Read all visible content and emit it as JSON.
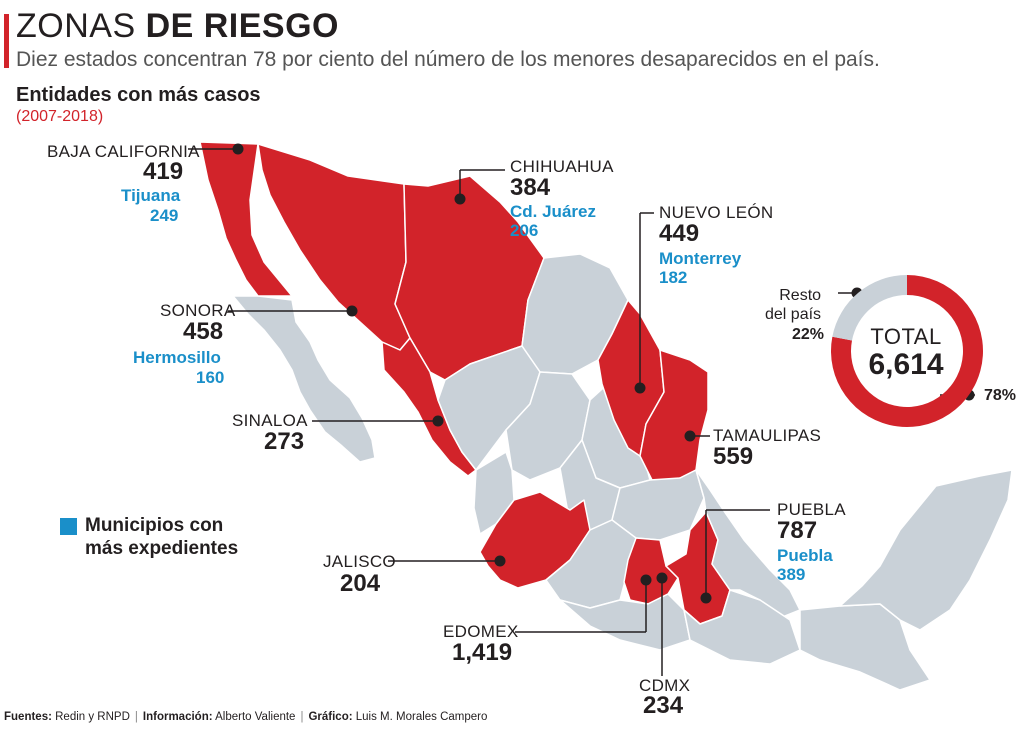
{
  "header": {
    "title_light": "ZONAS",
    "title_bold": "DE RIESGO",
    "subtitle": "Diez estados concentran 78 por ciento del número de los menores desaparecidos en el país.",
    "section_title": "Entidades con más casos",
    "years": "(2007-2018)"
  },
  "states": [
    {
      "id": "baja-california",
      "name": "BAJA CALIFORNIA",
      "value": "419",
      "municipality": "Tijuana",
      "municipality_value": "249"
    },
    {
      "id": "chihuahua",
      "name": "CHIHUAHUA",
      "value": "384",
      "municipality": "Cd. Juárez",
      "municipality_value": "206"
    },
    {
      "id": "nuevo-leon",
      "name": "NUEVO LEÓN",
      "value": "449",
      "municipality": "Monterrey",
      "municipality_value": "182"
    },
    {
      "id": "sonora",
      "name": "SONORA",
      "value": "458",
      "municipality": "Hermosillo",
      "municipality_value": "160"
    },
    {
      "id": "sinaloa",
      "name": "SINALOA",
      "value": "273"
    },
    {
      "id": "tamaulipas",
      "name": "TAMAULIPAS",
      "value": "559"
    },
    {
      "id": "puebla",
      "name": "PUEBLA",
      "value": "787",
      "municipality": "Puebla",
      "municipality_value": "389"
    },
    {
      "id": "jalisco",
      "name": "JALISCO",
      "value": "204"
    },
    {
      "id": "edomex",
      "name": "EDOMEX",
      "value": "1,419"
    },
    {
      "id": "cdmx",
      "name": "CDMX",
      "value": "234"
    }
  ],
  "legend": {
    "line1": "Municipios con",
    "line2": "más expedientes"
  },
  "donut": {
    "total_label": "TOTAL",
    "total_value": "6,614",
    "rest_label_1": "Resto",
    "rest_label_2": "del país",
    "rest_percent": "22%",
    "top_percent": "78%",
    "top_fraction": 0.78,
    "colors": {
      "top": "#d2232a",
      "rest": "#c9d1d8"
    }
  },
  "footer": {
    "src_label": "Fuentes:",
    "src_text": "Redin y RNPD",
    "info_label": "Información:",
    "info_text": "Alberto Valiente",
    "graf_label": "Gráfico:",
    "graf_text": "Luis M. Morales Campero"
  },
  "colors": {
    "highlight": "#d2232a",
    "land": "#c9d1d8",
    "accent_blue": "#1a8fc9"
  }
}
